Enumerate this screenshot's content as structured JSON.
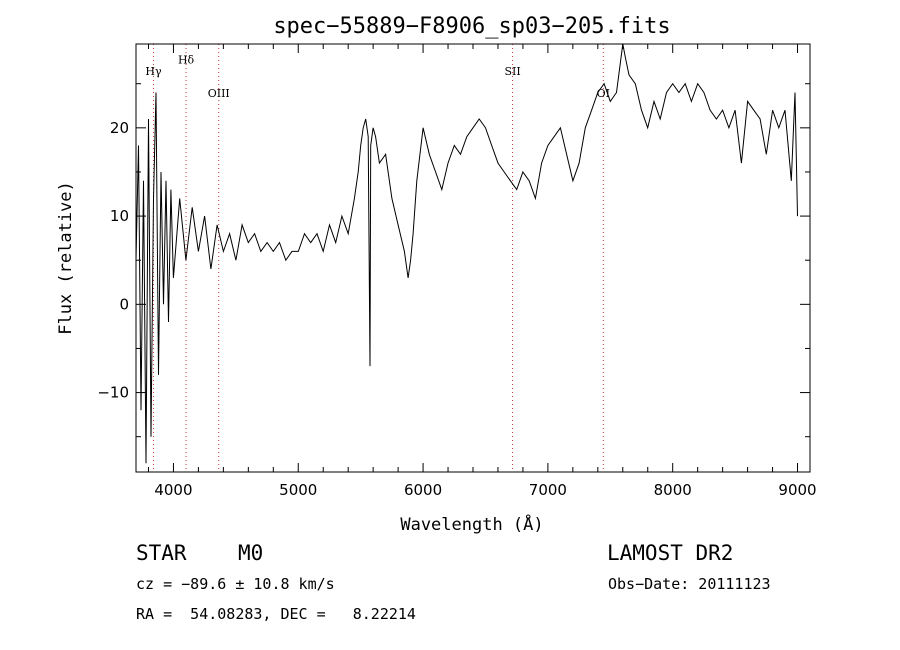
{
  "chart_data": {
    "type": "line",
    "title": "spec−55889−F8906_sp03−205.fits",
    "xlabel": "Wavelength (Å)",
    "ylabel": "Flux (relative)",
    "xlim": [
      3700,
      9100
    ],
    "ylim": [
      -19,
      29.5
    ],
    "xticks": [
      4000,
      5000,
      6000,
      7000,
      8000,
      9000
    ],
    "yticks": [
      -10,
      0,
      10,
      20
    ],
    "grid": false,
    "line_color": "#000000",
    "marker_color": "#cc3333",
    "lines": [
      {
        "label": "Hγ",
        "x": 3840,
        "label_y": 26.0
      },
      {
        "label": "Hδ",
        "x": 4101,
        "label_y": 27.3
      },
      {
        "label": "OIII",
        "x": 4363,
        "label_y": 23.5
      },
      {
        "label": "SII",
        "x": 6717,
        "label_y": 26.0
      },
      {
        "label": "OI",
        "x": 7444,
        "label_y": 23.5
      }
    ],
    "series": [
      {
        "x": [
          3700,
          3720,
          3740,
          3760,
          3780,
          3800,
          3820,
          3840,
          3860,
          3880,
          3900,
          3920,
          3940,
          3960,
          3980,
          4000,
          4050,
          4100,
          4150,
          4200,
          4250,
          4300,
          4350,
          4400,
          4450,
          4500,
          4550,
          4600,
          4650,
          4700,
          4750,
          4800,
          4850,
          4900,
          4950,
          5000,
          5050,
          5100,
          5150,
          5200,
          5250,
          5300,
          5350,
          5400,
          5450,
          5480,
          5500,
          5520,
          5540,
          5560,
          5575,
          5580,
          5600,
          5620,
          5650,
          5700,
          5750,
          5800,
          5850,
          5880,
          5900,
          5920,
          5950,
          6000,
          6050,
          6100,
          6150,
          6200,
          6250,
          6300,
          6350,
          6400,
          6450,
          6500,
          6550,
          6600,
          6650,
          6700,
          6750,
          6800,
          6850,
          6900,
          6950,
          7000,
          7050,
          7100,
          7150,
          7200,
          7250,
          7300,
          7350,
          7400,
          7450,
          7500,
          7550,
          7600,
          7620,
          7650,
          7700,
          7750,
          7800,
          7850,
          7900,
          7950,
          8000,
          8050,
          8100,
          8150,
          8200,
          8250,
          8300,
          8350,
          8400,
          8450,
          8500,
          8550,
          8600,
          8650,
          8700,
          8750,
          8800,
          8850,
          8900,
          8950,
          8980,
          9000
        ],
        "y": [
          5,
          18,
          -12,
          14,
          -18,
          21,
          -15,
          12,
          24,
          -8,
          15,
          0,
          14,
          -2,
          13,
          3,
          12,
          5,
          11,
          6,
          10,
          4,
          9,
          6,
          8,
          5,
          9,
          7,
          8,
          6,
          7,
          6,
          7,
          5,
          6,
          6,
          8,
          7,
          8,
          6,
          9,
          7,
          10,
          8,
          12,
          15,
          18,
          20,
          21,
          19,
          -7,
          18,
          20,
          19,
          16,
          17,
          12,
          9,
          6,
          3,
          5,
          8,
          14,
          20,
          17,
          15,
          13,
          16,
          18,
          17,
          19,
          20,
          21,
          20,
          18,
          16,
          15,
          14,
          13,
          15,
          14,
          12,
          16,
          18,
          19,
          20,
          17,
          14,
          16,
          20,
          22,
          24,
          25,
          23,
          24,
          31,
          28,
          26,
          25,
          22,
          20,
          23,
          21,
          24,
          25,
          24,
          25,
          23,
          25,
          24,
          22,
          21,
          22,
          20,
          22,
          16,
          23,
          22,
          21,
          17,
          22,
          20,
          22,
          14,
          24,
          10
        ]
      }
    ],
    "footer": {
      "class_label": "STAR",
      "subclass": "M0",
      "survey": "LAMOST DR2",
      "cz": "cz = −89.6 ± 10.8 km/s",
      "obs_date": "Obs−Date: 20111123",
      "radec": "RA =  54.08283, DEC =   8.22214"
    }
  }
}
